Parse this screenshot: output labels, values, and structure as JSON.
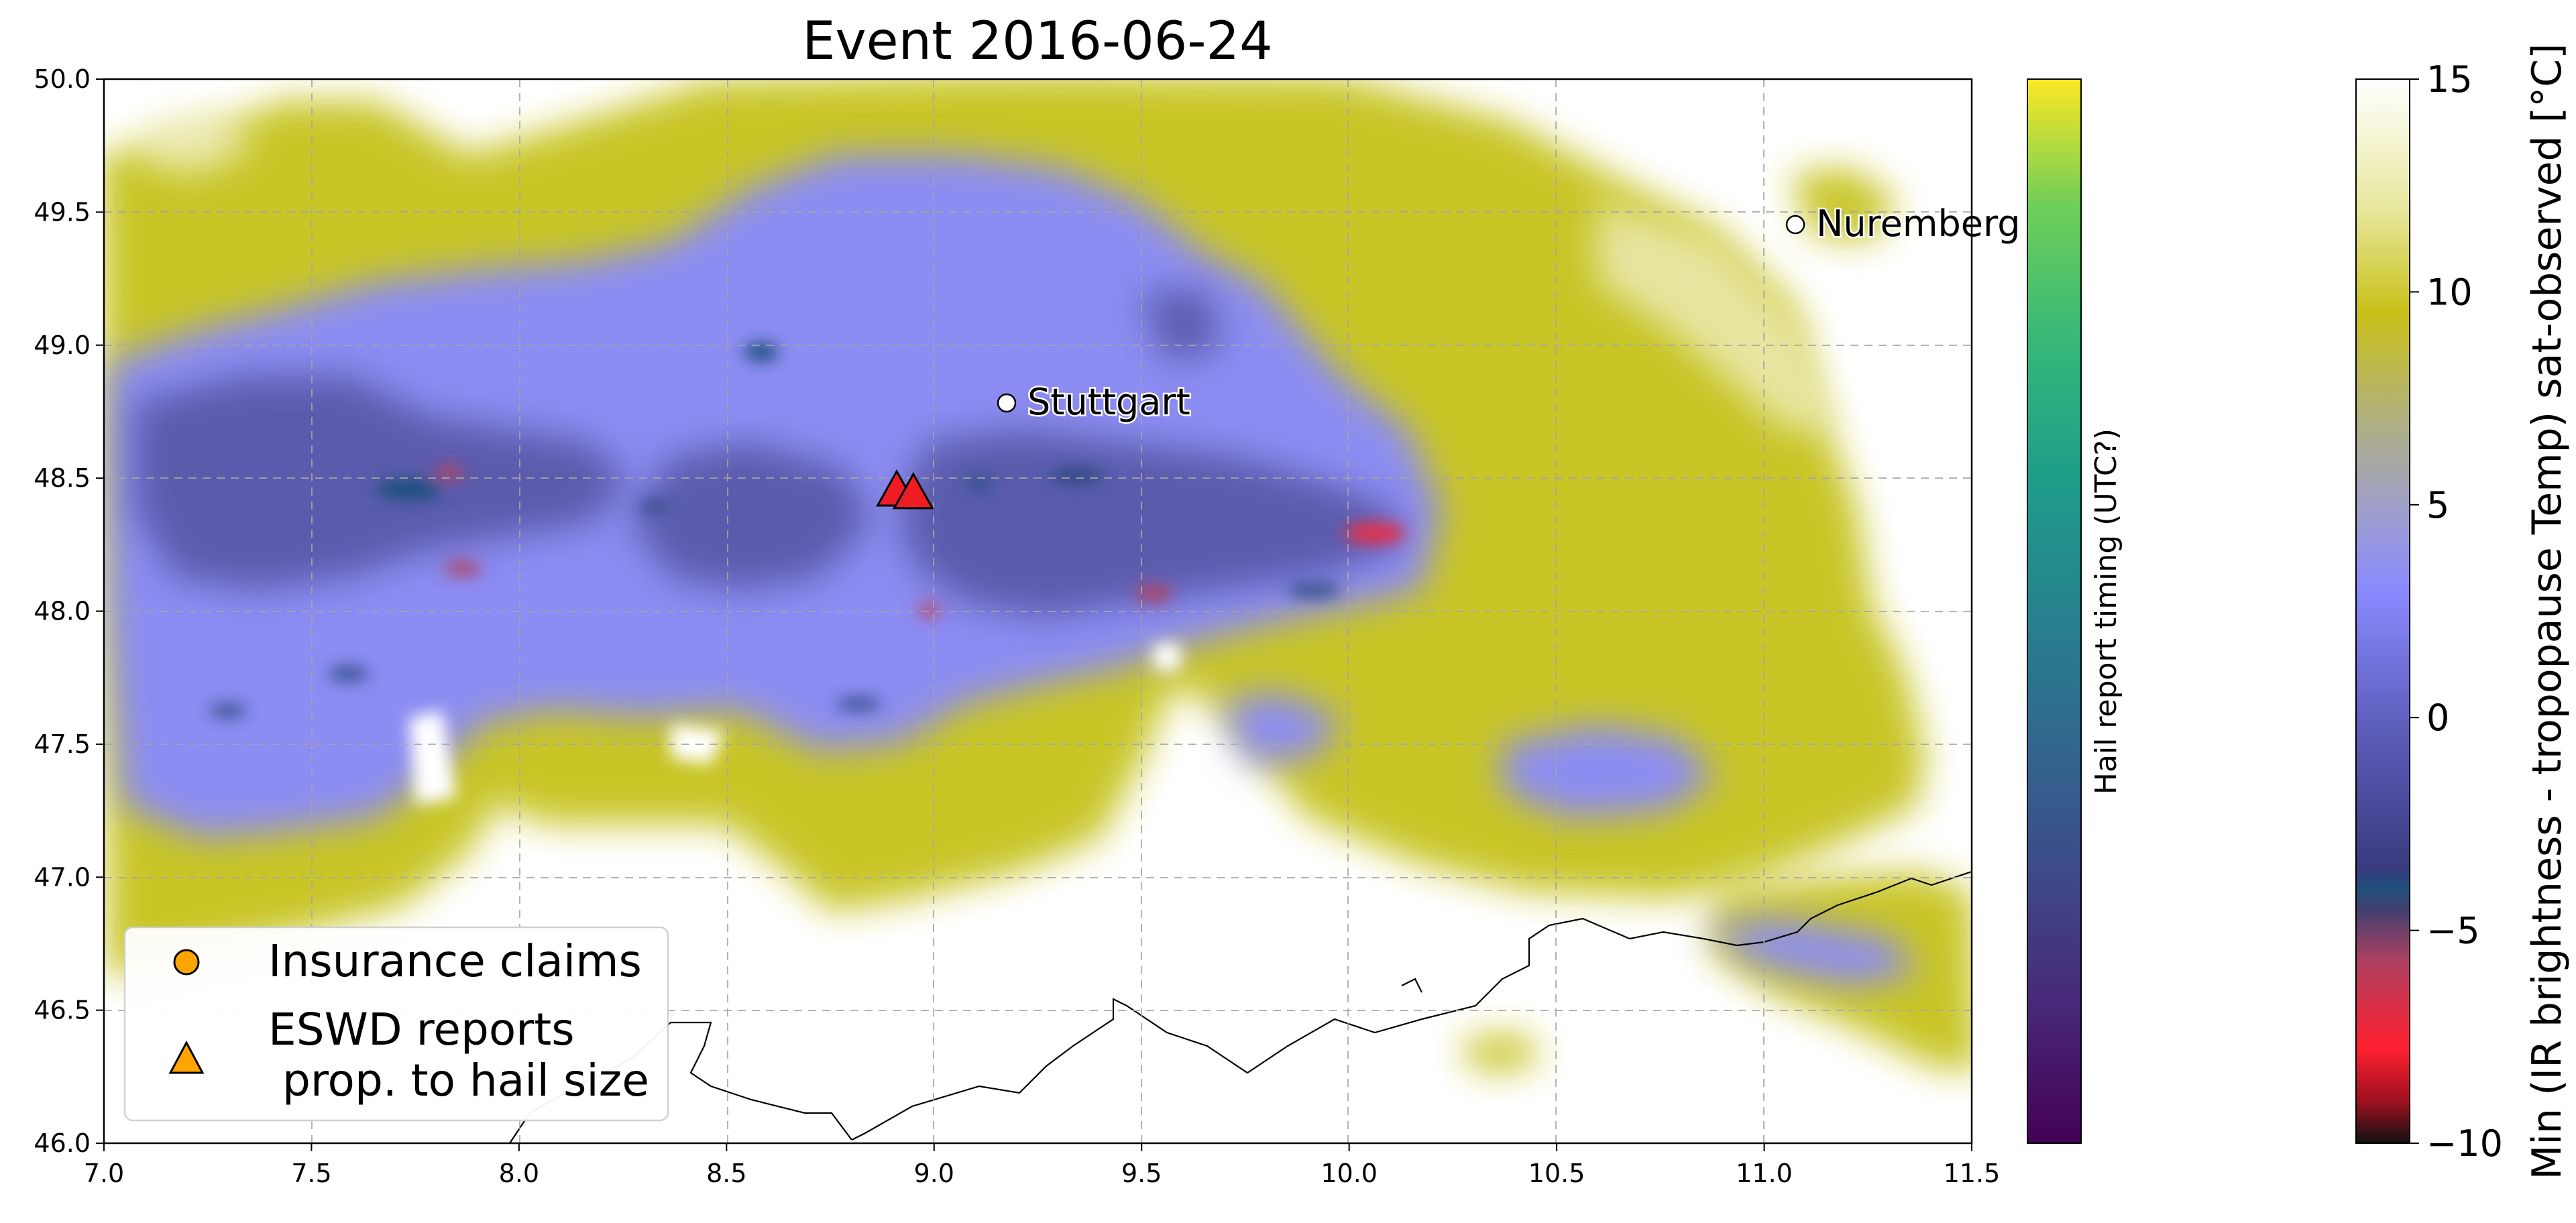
{
  "title": "Event 2016-06-24",
  "map": {
    "lon_range": [
      7.0,
      11.5
    ],
    "lat_range": [
      46.0,
      50.0
    ],
    "x_ticks": [
      "7.0",
      "7.5",
      "8.0",
      "8.5",
      "9.0",
      "9.5",
      "10.0",
      "10.5",
      "11.0",
      "11.5"
    ],
    "y_ticks": [
      "46.0",
      "46.5",
      "47.0",
      "47.5",
      "48.0",
      "48.5",
      "49.0",
      "49.5",
      "50.0"
    ],
    "grid": true,
    "cities": [
      {
        "name": "Stuttgart",
        "lon": 9.18,
        "lat": 48.78
      },
      {
        "name": "Nuremberg",
        "lon": 11.08,
        "lat": 49.45
      }
    ],
    "eswd_reports": [
      {
        "lon": 8.91,
        "lat": 48.45
      },
      {
        "lon": 8.95,
        "lat": 48.44
      }
    ],
    "eswd_color": "#ee1c25"
  },
  "legend": {
    "items": [
      {
        "label": "Insurance claims",
        "marker": "circle",
        "color": "#ffa500"
      },
      {
        "label": "ESWD reports\n prop. to hail size",
        "marker": "triangle",
        "color": "#ffa500"
      }
    ]
  },
  "colorbar_time": {
    "label": "Hail report timing (UTC?)",
    "colormap": "viridis"
  },
  "colorbar_temp": {
    "label": "Min (IR brightness - tropopause Temp) sat-observed [°C]",
    "range": [
      -10,
      15
    ],
    "ticks": [
      "15",
      "10",
      "5",
      "0",
      "−5",
      "−10"
    ]
  }
}
